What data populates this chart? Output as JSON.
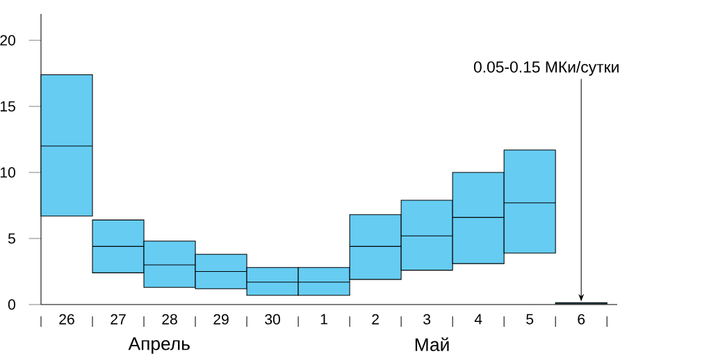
{
  "chart_data": {
    "type": "box",
    "categories": [
      "26",
      "27",
      "28",
      "29",
      "30",
      "1",
      "2",
      "3",
      "4",
      "5",
      "6"
    ],
    "boxes": [
      {
        "low": 6.7,
        "q1": 6.7,
        "median": 12.0,
        "q3": 17.4,
        "high": 17.4
      },
      {
        "low": 2.4,
        "q1": 2.4,
        "median": 4.4,
        "q3": 6.4,
        "high": 6.4
      },
      {
        "low": 1.3,
        "q1": 1.3,
        "median": 3.0,
        "q3": 4.8,
        "high": 4.8
      },
      {
        "low": 1.2,
        "q1": 1.2,
        "median": 2.5,
        "q3": 3.8,
        "high": 3.8
      },
      {
        "low": 0.7,
        "q1": 0.7,
        "median": 1.7,
        "q3": 2.8,
        "high": 2.8
      },
      {
        "low": 0.7,
        "q1": 0.7,
        "median": 1.7,
        "q3": 2.8,
        "high": 2.8
      },
      {
        "low": 1.9,
        "q1": 1.9,
        "median": 4.4,
        "q3": 6.8,
        "high": 6.8
      },
      {
        "low": 2.6,
        "q1": 2.6,
        "median": 5.2,
        "q3": 7.9,
        "high": 7.9
      },
      {
        "low": 3.1,
        "q1": 3.1,
        "median": 6.6,
        "q3": 10.0,
        "high": 10.0
      },
      {
        "low": 3.9,
        "q1": 3.9,
        "median": 7.7,
        "q3": 11.7,
        "high": 11.7
      },
      {
        "low": 0.05,
        "q1": 0.05,
        "median": 0.1,
        "q3": 0.15,
        "high": 0.15
      }
    ],
    "color": "#66ccf2",
    "ylim": [
      0,
      22
    ],
    "yticks": [
      0,
      5,
      10,
      15,
      20
    ],
    "annotations": [
      "0.05-0.15 МКи/сутки",
      "Апрель",
      "Май"
    ]
  }
}
